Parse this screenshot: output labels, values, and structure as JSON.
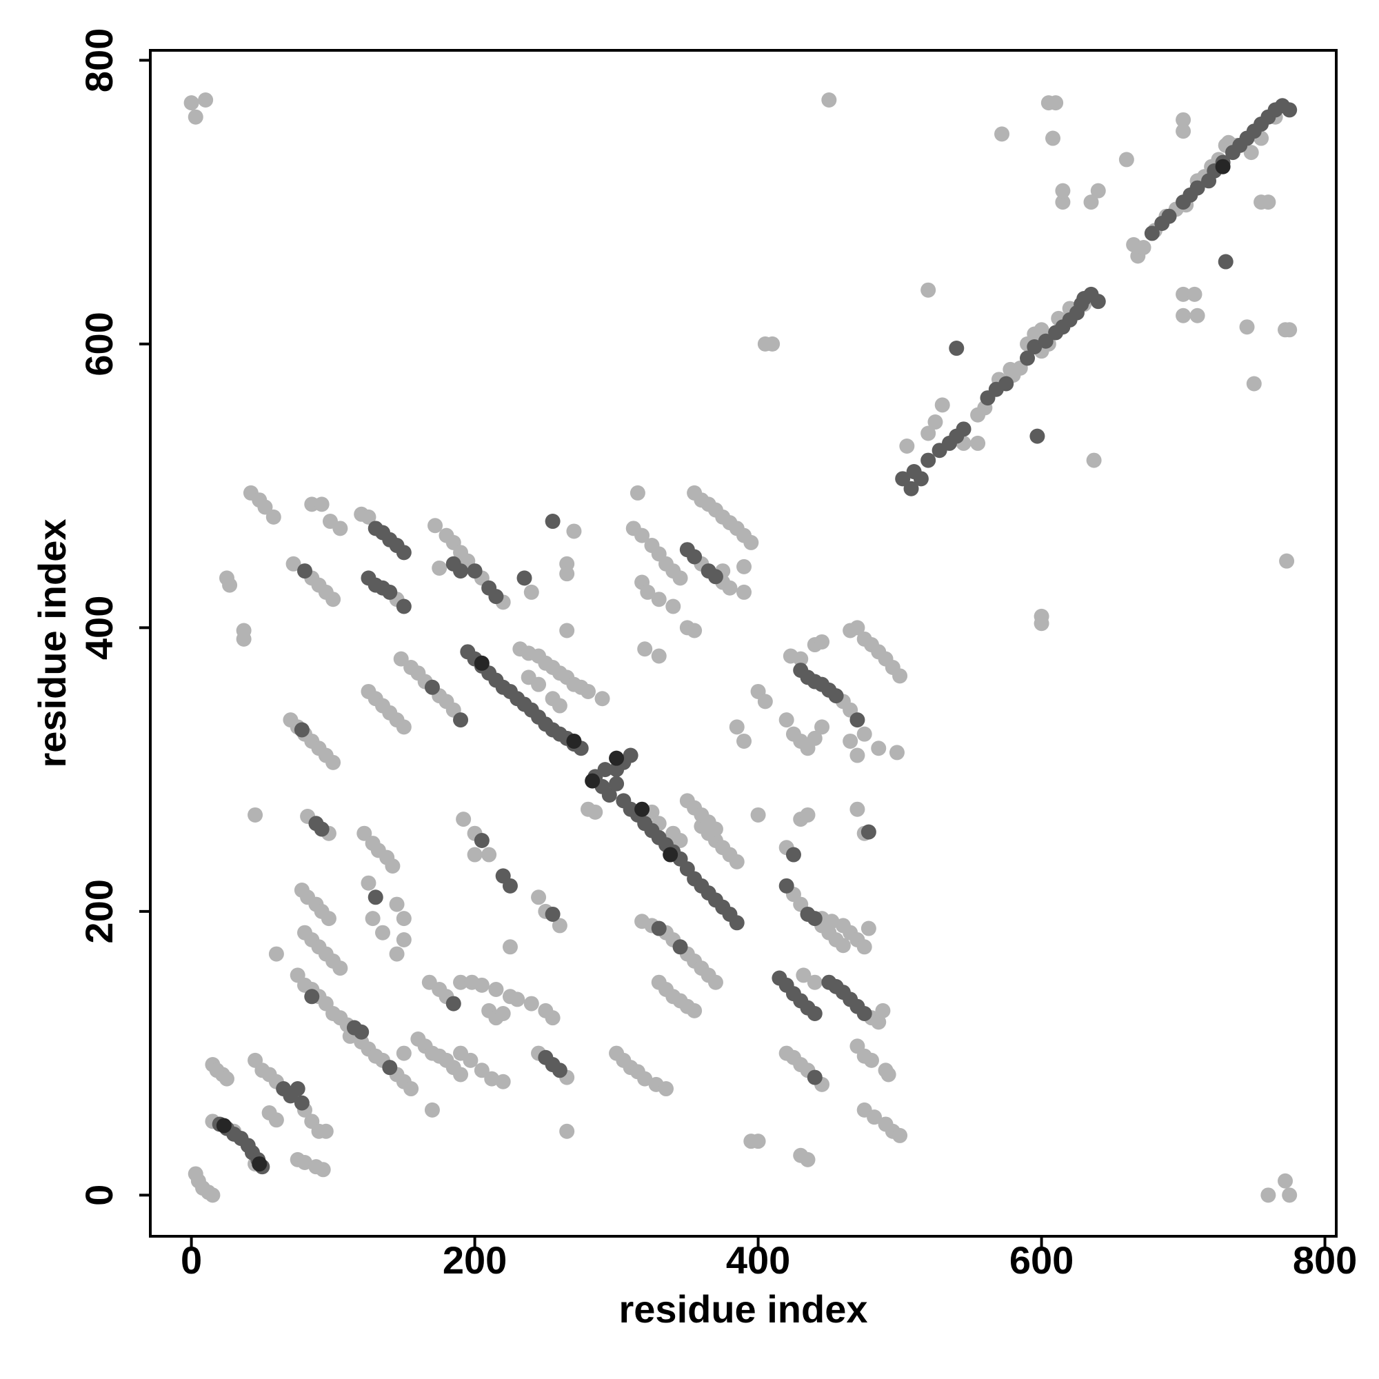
{
  "chart_data": {
    "type": "scatter",
    "xlabel": "residue index",
    "ylabel": "residue index",
    "xlim": [
      -29,
      808
    ],
    "ylim": [
      -29,
      807
    ],
    "xticks": [
      0,
      200,
      400,
      600,
      800
    ],
    "yticks": [
      0,
      200,
      400,
      600,
      800
    ],
    "grid": false,
    "series": [
      {
        "color": "#b3b3b3",
        "x": [
          3,
          5,
          8,
          12,
          15,
          15,
          30,
          45,
          15,
          18,
          22,
          25,
          45,
          50,
          55,
          60,
          80,
          85,
          90,
          95,
          75,
          80,
          88,
          93,
          55,
          60,
          60,
          75,
          80,
          85,
          90,
          95,
          100,
          105,
          110,
          78,
          82,
          88,
          92,
          97,
          80,
          85,
          90,
          95,
          100,
          105,
          70,
          75,
          80,
          85,
          90,
          95,
          100,
          82,
          97,
          72,
          85,
          90,
          95,
          100,
          42,
          48,
          52,
          58,
          85,
          92,
          98,
          105,
          25,
          27,
          37,
          37,
          45,
          0,
          3,
          10,
          120,
          125,
          145,
          125,
          130,
          135,
          140,
          145,
          150,
          148,
          155,
          160,
          165,
          175,
          180,
          185,
          122,
          128,
          132,
          138,
          142,
          125,
          128,
          135,
          145,
          150,
          150,
          145,
          112,
          120,
          125,
          130,
          135,
          145,
          150,
          155,
          150,
          160,
          165,
          170,
          175,
          180,
          185,
          190,
          168,
          175,
          180,
          190,
          198,
          205,
          215,
          172,
          180,
          185,
          190,
          195,
          205,
          220,
          175,
          232,
          238,
          245,
          250,
          255,
          260,
          265,
          270,
          275,
          280,
          290,
          238,
          245,
          255,
          260,
          280,
          285,
          325,
          330,
          340,
          345,
          360,
          365,
          370,
          375,
          380,
          385,
          350,
          355,
          360,
          365,
          370,
          318,
          325,
          335,
          340,
          350,
          355,
          360,
          365,
          370,
          330,
          335,
          340,
          345,
          350,
          355,
          300,
          305,
          310,
          315,
          320,
          328,
          335,
          225,
          230,
          240,
          250,
          255,
          210,
          215,
          220,
          190,
          197,
          205,
          212,
          220,
          245,
          265,
          200,
          192,
          210,
          245,
          250,
          260,
          240,
          270,
          265,
          265,
          265,
          265,
          170,
          225,
          200,
          312,
          318,
          325,
          330,
          335,
          340,
          345,
          315,
          318,
          322,
          330,
          340,
          355,
          360,
          365,
          370,
          375,
          380,
          385,
          390,
          395,
          360,
          375,
          380,
          375,
          390,
          390,
          350,
          355,
          320,
          330,
          385,
          390,
          400,
          405,
          400,
          400,
          395,
          430,
          435,
          423,
          430,
          440,
          445,
          460,
          465,
          465,
          470,
          475,
          480,
          485,
          490,
          495,
          500,
          420,
          425,
          430,
          435,
          440,
          445,
          475,
          465,
          470,
          485,
          498,
          420,
          430,
          435,
          470,
          475,
          425,
          430,
          445,
          450,
          455,
          460,
          445,
          452,
          460,
          465,
          470,
          475,
          478,
          432,
          440,
          480,
          485,
          488,
          420,
          425,
          430,
          435,
          445,
          470,
          475,
          480,
          490,
          492,
          475,
          482,
          490,
          495,
          500,
          505,
          520,
          525,
          530,
          545,
          555,
          560,
          555,
          580,
          585,
          570,
          578,
          590,
          595,
          600,
          605,
          600,
          612,
          620,
          630,
          665,
          668,
          672,
          680,
          688,
          695,
          702,
          715,
          725,
          732,
          738,
          748,
          755,
          765,
          720,
          710,
          450,
          605,
          610,
          608,
          572,
          700,
          700,
          730,
          660,
          615,
          615,
          635,
          640,
          755,
          760,
          700,
          708,
          700,
          710,
          520,
          405,
          410,
          745,
          772,
          775,
          750,
          637,
          773,
          600,
          600,
          760,
          772,
          775
        ],
        "values": [
          15,
          10,
          5,
          2,
          0,
          52,
          45,
          22,
          92,
          88,
          85,
          82,
          95,
          88,
          85,
          80,
          60,
          52,
          45,
          45,
          25,
          23,
          20,
          18,
          58,
          53,
          170,
          155,
          148,
          145,
          140,
          135,
          128,
          125,
          120,
          215,
          210,
          205,
          200,
          195,
          185,
          180,
          175,
          170,
          165,
          160,
          335,
          330,
          325,
          320,
          315,
          310,
          305,
          267,
          255,
          445,
          435,
          430,
          425,
          420,
          495,
          490,
          485,
          478,
          487,
          487,
          475,
          470,
          435,
          430,
          398,
          392,
          268,
          770,
          760,
          772,
          480,
          478,
          420,
          355,
          350,
          345,
          340,
          335,
          330,
          378,
          372,
          368,
          362,
          352,
          348,
          342,
          255,
          248,
          243,
          238,
          232,
          220,
          195,
          185,
          205,
          195,
          180,
          170,
          112,
          108,
          103,
          98,
          95,
          85,
          80,
          75,
          100,
          110,
          105,
          100,
          98,
          95,
          90,
          85,
          150,
          145,
          140,
          150,
          150,
          148,
          145,
          472,
          465,
          460,
          453,
          447,
          435,
          418,
          442,
          385,
          382,
          380,
          375,
          372,
          368,
          365,
          360,
          358,
          355,
          350,
          365,
          360,
          350,
          345,
          272,
          270,
          270,
          262,
          255,
          250,
          260,
          255,
          250,
          245,
          240,
          235,
          278,
          273,
          268,
          263,
          258,
          193,
          190,
          185,
          180,
          170,
          165,
          160,
          155,
          150,
          150,
          145,
          140,
          137,
          133,
          130,
          100,
          95,
          90,
          87,
          82,
          78,
          75,
          140,
          138,
          135,
          130,
          125,
          130,
          125,
          128,
          100,
          95,
          88,
          82,
          80,
          100,
          83,
          255,
          265,
          240,
          210,
          200,
          190,
          425,
          468,
          445,
          438,
          398,
          45,
          60,
          175,
          240,
          470,
          465,
          458,
          452,
          445,
          440,
          435,
          495,
          432,
          425,
          420,
          415,
          495,
          490,
          487,
          483,
          478,
          474,
          470,
          465,
          460,
          445,
          432,
          428,
          440,
          443,
          425,
          400,
          398,
          385,
          380,
          330,
          320,
          355,
          348,
          268,
          38,
          38,
          28,
          25,
          380,
          378,
          388,
          390,
          348,
          342,
          398,
          400,
          392,
          388,
          383,
          378,
          372,
          366,
          335,
          325,
          320,
          315,
          322,
          330,
          325,
          320,
          310,
          315,
          312,
          245,
          265,
          268,
          272,
          255,
          212,
          205,
          190,
          185,
          180,
          176,
          195,
          193,
          190,
          185,
          180,
          175,
          188,
          155,
          150,
          125,
          122,
          130,
          100,
          97,
          92,
          88,
          78,
          105,
          98,
          95,
          88,
          85,
          60,
          55,
          50,
          45,
          42,
          528,
          537,
          545,
          557,
          530,
          550,
          555,
          530,
          578,
          583,
          575,
          582,
          600,
          607,
          595,
          600,
          610,
          618,
          625,
          628,
          670,
          662,
          668,
          680,
          690,
          695,
          698,
          718,
          730,
          742,
          740,
          735,
          745,
          760,
          725,
          715,
          772,
          770,
          770,
          745,
          748,
          758,
          750,
          740,
          730,
          700,
          708,
          700,
          708,
          700,
          700,
          635,
          635,
          620,
          620,
          638,
          600,
          600,
          612,
          610,
          610,
          572,
          518,
          447,
          408,
          403,
          0,
          10,
          0
        ]
      },
      {
        "color": "#5c5c5c",
        "x": [
          20,
          25,
          30,
          35,
          40,
          43,
          47,
          50,
          65,
          70,
          75,
          78,
          85,
          115,
          120,
          78,
          88,
          92,
          80,
          130,
          135,
          140,
          145,
          150,
          125,
          130,
          135,
          140,
          150,
          170,
          190,
          130,
          140,
          185,
          200,
          210,
          215,
          185,
          190,
          195,
          200,
          205,
          210,
          215,
          220,
          225,
          230,
          235,
          240,
          245,
          250,
          255,
          260,
          265,
          270,
          275,
          285,
          290,
          295,
          300,
          305,
          310,
          300,
          292,
          305,
          310,
          315,
          320,
          325,
          330,
          335,
          340,
          345,
          350,
          355,
          360,
          365,
          370,
          375,
          380,
          385,
          330,
          345,
          250,
          255,
          260,
          205,
          220,
          225,
          255,
          235,
          255,
          350,
          355,
          365,
          370,
          430,
          435,
          440,
          445,
          450,
          455,
          470,
          425,
          478,
          420,
          435,
          440,
          415,
          420,
          425,
          430,
          435,
          440,
          450,
          455,
          460,
          465,
          470,
          475,
          440,
          502,
          508,
          510,
          515,
          520,
          528,
          535,
          540,
          545,
          562,
          568,
          575,
          590,
          595,
          603,
          610,
          615,
          620,
          625,
          628,
          630,
          635,
          640,
          678,
          685,
          690,
          700,
          705,
          710,
          718,
          722,
          728,
          735,
          740,
          745,
          750,
          755,
          760,
          765,
          770,
          775,
          540,
          597,
          730
        ],
        "values": [
          50,
          47,
          43,
          40,
          35,
          30,
          25,
          20,
          75,
          70,
          75,
          65,
          140,
          118,
          115,
          328,
          262,
          258,
          440,
          470,
          467,
          462,
          458,
          453,
          435,
          430,
          428,
          425,
          415,
          358,
          335,
          210,
          90,
          135,
          440,
          428,
          422,
          445,
          440,
          383,
          378,
          373,
          368,
          363,
          358,
          355,
          350,
          346,
          342,
          337,
          332,
          328,
          325,
          322,
          318,
          315,
          295,
          288,
          282,
          300,
          305,
          310,
          290,
          300,
          278,
          272,
          268,
          262,
          257,
          252,
          247,
          242,
          237,
          230,
          223,
          218,
          213,
          208,
          203,
          198,
          192,
          188,
          175,
          97,
          92,
          88,
          250,
          225,
          218,
          198,
          435,
          475,
          455,
          450,
          440,
          436,
          370,
          365,
          362,
          360,
          356,
          352,
          335,
          240,
          256,
          218,
          198,
          195,
          153,
          148,
          142,
          137,
          132,
          128,
          150,
          147,
          143,
          138,
          133,
          128,
          83,
          505,
          498,
          510,
          505,
          518,
          525,
          530,
          535,
          540,
          562,
          568,
          572,
          590,
          598,
          602,
          608,
          612,
          617,
          622,
          628,
          632,
          635,
          630,
          678,
          685,
          690,
          700,
          705,
          710,
          715,
          722,
          728,
          735,
          740,
          745,
          750,
          755,
          760,
          765,
          768,
          765,
          597,
          535,
          658
        ]
      },
      {
        "color": "#262626",
        "x": [
          23,
          48,
          318,
          338,
          300,
          270,
          205,
          728,
          283
        ],
        "values": [
          49,
          22,
          272,
          240,
          308,
          320,
          375,
          725,
          292
        ]
      }
    ]
  }
}
